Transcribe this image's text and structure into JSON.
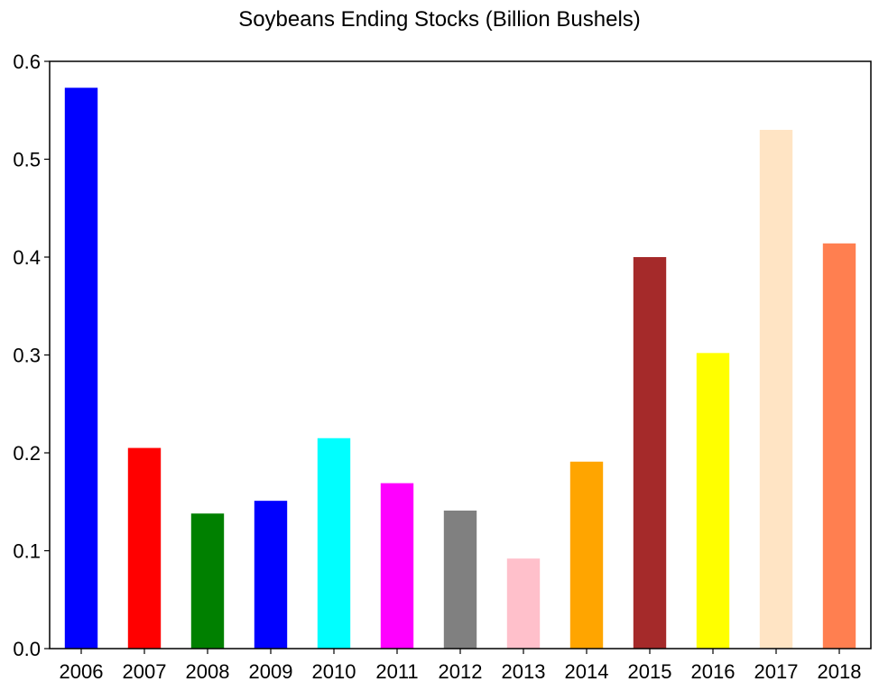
{
  "chart_data": {
    "type": "bar",
    "title": "Soybeans Ending Stocks (Billion Bushels)",
    "xlabel": "",
    "ylabel": "",
    "categories": [
      "2006",
      "2007",
      "2008",
      "2009",
      "2010",
      "2011",
      "2012",
      "2013",
      "2014",
      "2015",
      "2016",
      "2017",
      "2018"
    ],
    "values": [
      0.573,
      0.205,
      0.138,
      0.151,
      0.215,
      0.169,
      0.141,
      0.092,
      0.191,
      0.4,
      0.302,
      0.53,
      0.414
    ],
    "colors": [
      "#0000ff",
      "#ff0000",
      "#008000",
      "#0000ff",
      "#00ffff",
      "#ff00ff",
      "#808080",
      "#ffc0cb",
      "#ffa500",
      "#a52a2a",
      "#ffff00",
      "#ffe4c4",
      "#ff7f50"
    ],
    "ylim": [
      0,
      0.6
    ],
    "yticks": [
      "0.0",
      "0.1",
      "0.2",
      "0.3",
      "0.4",
      "0.5",
      "0.6"
    ],
    "grid": false,
    "legend": "none"
  }
}
